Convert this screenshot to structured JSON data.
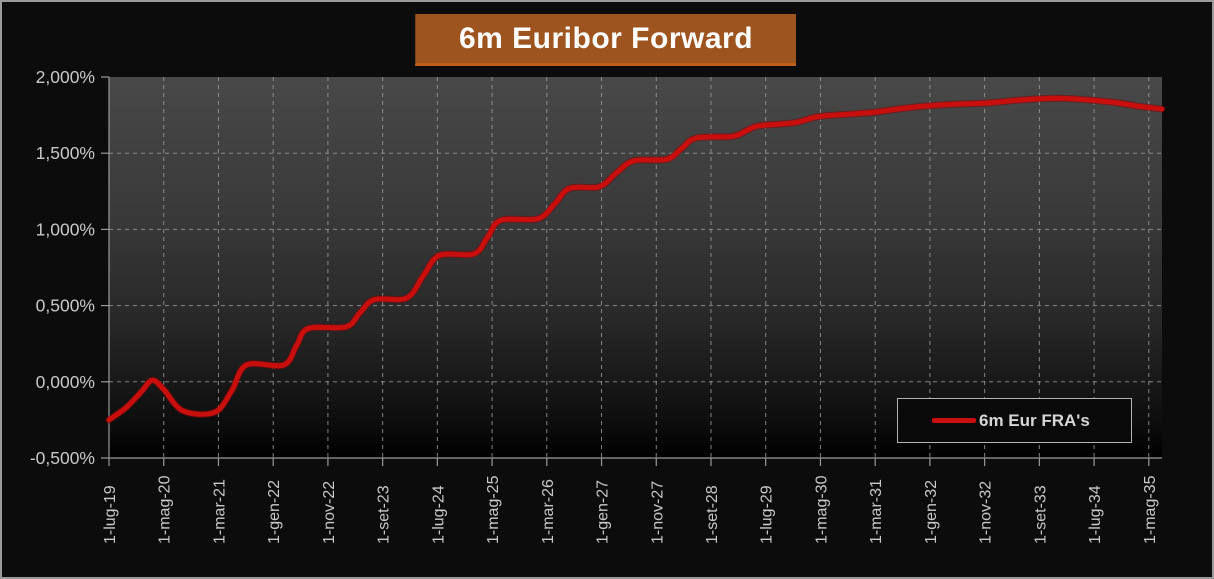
{
  "window": {
    "background": "#0D0C0C",
    "frame_border": "#9B9B9B"
  },
  "header": {
    "title": "6m Euribor Forward",
    "bg": "#9E541F",
    "bottom_edge": "#C06018",
    "text_color": "#FFFFFF"
  },
  "legend": {
    "label": "6m Eur FRA's",
    "line_color": "#C90E0E",
    "border": "#B3B3B3",
    "bg": "#0A0A0A",
    "text_color": "#D6D6D6"
  },
  "axis": {
    "label_color": "#C9C9C9",
    "grid_color": "#9A9A9A"
  },
  "chart_data": {
    "type": "line",
    "title": "6m Euribor Forward",
    "grid": true,
    "legend_position": "bottom-right",
    "x_tick_labels": [
      "1-lug-19",
      "1-mag-20",
      "1-mar-21",
      "1-gen-22",
      "1-nov-22",
      "1-set-23",
      "1-lug-24",
      "1-mag-25",
      "1-mar-26",
      "1-gen-27",
      "1-nov-27",
      "1-set-28",
      "1-lug-29",
      "1-mag-30",
      "1-mar-31",
      "1-gen-32",
      "1-nov-32",
      "1-set-33",
      "1-lug-34",
      "1-mag-35"
    ],
    "y_ticks": [
      {
        "label": "2,000%",
        "value": 2.0
      },
      {
        "label": "1,500%",
        "value": 1.5
      },
      {
        "label": "1,000%",
        "value": 1.0
      },
      {
        "label": "0,500%",
        "value": 0.5
      },
      {
        "label": "0,000%",
        "value": 0.0
      },
      {
        "label": "-0,500%",
        "value": -0.5
      }
    ],
    "ylim": [
      -0.5,
      2.0
    ],
    "xlim_ticks": [
      0,
      19.24
    ],
    "points_format": "[x_tick_index (1 tick = 10 months), rate_percent]",
    "series": [
      {
        "name": "6m Eur FRA's",
        "color": "#C90E0E",
        "points": [
          [
            0.0,
            -0.25
          ],
          [
            0.31,
            -0.17
          ],
          [
            0.58,
            -0.07
          ],
          [
            0.79,
            0.01
          ],
          [
            1.0,
            -0.05
          ],
          [
            1.35,
            -0.19
          ],
          [
            1.93,
            -0.2
          ],
          [
            2.24,
            -0.06
          ],
          [
            2.51,
            0.11
          ],
          [
            3.19,
            0.11
          ],
          [
            3.43,
            0.24
          ],
          [
            3.64,
            0.35
          ],
          [
            4.33,
            0.36
          ],
          [
            4.58,
            0.45
          ],
          [
            4.85,
            0.54
          ],
          [
            5.44,
            0.55
          ],
          [
            5.75,
            0.7
          ],
          [
            6.04,
            0.83
          ],
          [
            6.67,
            0.84
          ],
          [
            6.92,
            0.95
          ],
          [
            7.16,
            1.06
          ],
          [
            7.84,
            1.07
          ],
          [
            8.15,
            1.17
          ],
          [
            8.42,
            1.27
          ],
          [
            8.96,
            1.28
          ],
          [
            9.27,
            1.37
          ],
          [
            9.59,
            1.45
          ],
          [
            10.19,
            1.46
          ],
          [
            10.46,
            1.53
          ],
          [
            10.73,
            1.6
          ],
          [
            11.39,
            1.61
          ],
          [
            11.66,
            1.65
          ],
          [
            11.88,
            1.68
          ],
          [
            12.53,
            1.7
          ],
          [
            12.96,
            1.74
          ],
          [
            13.68,
            1.76
          ],
          [
            14.01,
            1.77
          ],
          [
            14.64,
            1.8
          ],
          [
            15.36,
            1.82
          ],
          [
            16.08,
            1.83
          ],
          [
            16.68,
            1.85
          ],
          [
            17.34,
            1.86
          ],
          [
            17.88,
            1.85
          ],
          [
            18.43,
            1.83
          ],
          [
            18.78,
            1.81
          ],
          [
            19.24,
            1.79
          ]
        ]
      }
    ]
  }
}
